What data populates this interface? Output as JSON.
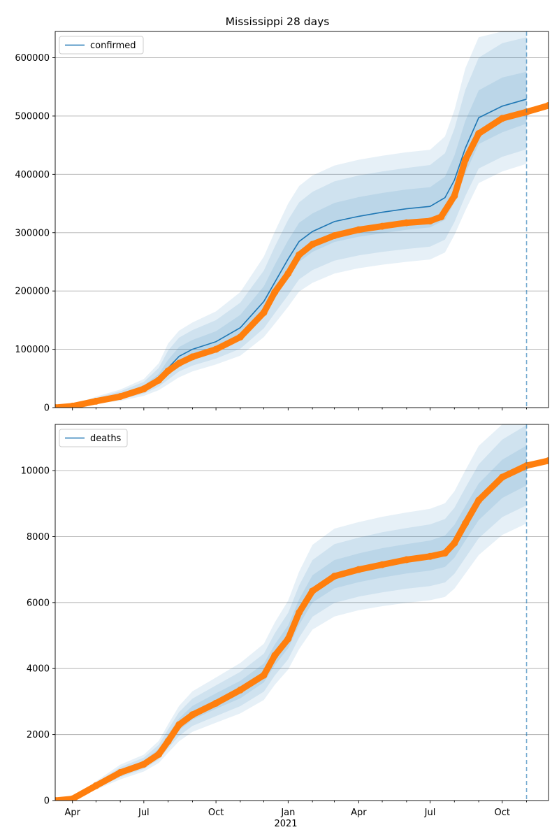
{
  "figure": {
    "title": "Mississippi 28 days",
    "year_label": "2021",
    "x_tick_labels": [
      "Apr",
      "Jul",
      "Oct",
      "Jan",
      "Apr",
      "Jul",
      "Oct"
    ]
  },
  "colors": {
    "band": "#1f77b4",
    "median": "#1f77b4",
    "observed": "#ff7f0e",
    "grid": "#b0b0b0"
  },
  "chart_data": [
    {
      "type": "line",
      "title": "Mississippi 28 days",
      "legend": [
        "confirmed"
      ],
      "legend_placement": "top-left",
      "grid": "horizontal",
      "x_range": [
        "2020-03-10",
        "2021-11-29"
      ],
      "ylim": [
        0,
        645000
      ],
      "y_ticks": [
        0,
        100000,
        200000,
        300000,
        400000,
        500000,
        600000
      ],
      "y_tick_labels": [
        "0",
        "100000",
        "200000",
        "300000",
        "400000",
        "500000",
        "600000"
      ],
      "forecast_date": "2021-11-01",
      "forecast": {
        "dates": [
          "2020-03-10",
          "2020-04-01",
          "2020-05-01",
          "2020-06-01",
          "2020-07-01",
          "2020-07-20",
          "2020-08-01",
          "2020-08-15",
          "2020-09-01",
          "2020-10-01",
          "2020-11-01",
          "2020-12-01",
          "2020-12-15",
          "2021-01-01",
          "2021-01-15",
          "2021-02-01",
          "2021-03-01",
          "2021-04-01",
          "2021-05-01",
          "2021-06-01",
          "2021-07-01",
          "2021-07-20",
          "2021-08-01",
          "2021-08-15",
          "2021-09-01",
          "2021-10-01",
          "2021-11-01"
        ],
        "median": [
          0,
          3000,
          12000,
          20000,
          33000,
          50000,
          68000,
          88000,
          100000,
          113000,
          137000,
          182000,
          215000,
          255000,
          285000,
          302000,
          319000,
          328000,
          335000,
          341000,
          345000,
          360000,
          390000,
          445000,
          497000,
          517000,
          529000
        ],
        "band_inner": {
          "lower": [
            0,
            2500,
            10000,
            17000,
            29000,
            44000,
            58000,
            75000,
            86000,
            97000,
            117000,
            157000,
            187000,
            222000,
            250000,
            267000,
            284000,
            293000,
            299000,
            305000,
            309000,
            322000,
            352000,
            402000,
            452000,
            472000,
            487000
          ],
          "upper": [
            0,
            3600,
            14000,
            24000,
            38000,
            58000,
            82000,
            104000,
            116000,
            131000,
            159000,
            208000,
            245000,
            287000,
            317000,
            333000,
            351000,
            361000,
            368000,
            374000,
            378000,
            396000,
            432000,
            492000,
            544000,
            566000,
            576000
          ]
        },
        "band_middle": {
          "lower": [
            0,
            2000,
            8500,
            14000,
            24000,
            36000,
            48000,
            62000,
            72000,
            84000,
            101000,
            136000,
            162000,
            193000,
            220000,
            236000,
            252000,
            261000,
            267000,
            272000,
            276000,
            288000,
            318000,
            363000,
            410000,
            430000,
            443000
          ],
          "upper": [
            0,
            4200,
            16500,
            28000,
            44000,
            68000,
            98000,
            120000,
            133000,
            150000,
            180000,
            235000,
            276000,
            322000,
            352000,
            370000,
            388000,
            398000,
            405000,
            411000,
            416000,
            436000,
            478000,
            545000,
            600000,
            625000,
            635000
          ]
        },
        "band_outer": {
          "lower": [
            0,
            1600,
            7000,
            11500,
            20000,
            30000,
            40000,
            52000,
            62000,
            74000,
            89000,
            121000,
            144000,
            173000,
            199000,
            214000,
            230000,
            239000,
            245000,
            250000,
            254000,
            266000,
            296000,
            338000,
            385000,
            405000,
            418000
          ],
          "upper": [
            0,
            4800,
            19000,
            31000,
            49000,
            76000,
            110000,
            132000,
            146000,
            165000,
            198000,
            259000,
            302000,
            350000,
            380000,
            398000,
            415000,
            425000,
            432000,
            438000,
            442000,
            465000,
            510000,
            582000,
            635000,
            645000,
            645000
          ]
        }
      },
      "observed": {
        "dates": [
          "2020-03-10",
          "2020-04-01",
          "2020-05-01",
          "2020-06-01",
          "2020-07-01",
          "2020-07-20",
          "2020-08-01",
          "2020-08-15",
          "2020-09-01",
          "2020-10-01",
          "2020-11-01",
          "2020-12-01",
          "2020-12-15",
          "2021-01-01",
          "2021-01-15",
          "2021-02-01",
          "2021-03-01",
          "2021-04-01",
          "2021-05-01",
          "2021-06-01",
          "2021-07-01",
          "2021-07-15",
          "2021-08-01",
          "2021-08-15",
          "2021-09-01",
          "2021-10-01",
          "2021-11-01",
          "2021-11-29"
        ],
        "values": [
          0,
          2500,
          11000,
          19000,
          32000,
          47000,
          63000,
          76000,
          87000,
          100000,
          121000,
          163000,
          198000,
          230000,
          262000,
          280000,
          295000,
          305000,
          311000,
          317000,
          320000,
          327000,
          363000,
          425000,
          470000,
          496000,
          507000,
          518000
        ]
      }
    },
    {
      "type": "line",
      "title": "",
      "legend": [
        "deaths"
      ],
      "legend_placement": "top-left",
      "grid": "horizontal",
      "x_range": [
        "2020-03-10",
        "2021-11-29"
      ],
      "ylim": [
        0,
        11400
      ],
      "y_ticks": [
        0,
        2000,
        4000,
        6000,
        8000,
        10000
      ],
      "y_tick_labels": [
        "0",
        "2000",
        "4000",
        "6000",
        "8000",
        "10000"
      ],
      "forecast_date": "2021-11-01",
      "forecast": {
        "dates": [
          "2020-03-10",
          "2020-04-01",
          "2020-05-01",
          "2020-06-01",
          "2020-07-01",
          "2020-07-20",
          "2020-08-01",
          "2020-08-15",
          "2020-09-01",
          "2020-10-01",
          "2020-11-01",
          "2020-12-01",
          "2020-12-15",
          "2021-01-01",
          "2021-01-15",
          "2021-02-01",
          "2021-03-01",
          "2021-04-01",
          "2021-05-01",
          "2021-06-01",
          "2021-07-01",
          "2021-07-20",
          "2021-08-01",
          "2021-08-15",
          "2021-09-01",
          "2021-10-01",
          "2021-11-01"
        ],
        "median": [
          0,
          60,
          450,
          850,
          1120,
          1450,
          1850,
          2300,
          2650,
          3000,
          3350,
          3850,
          4400,
          4950,
          5700,
          6400,
          6850,
          7050,
          7200,
          7320,
          7420,
          7550,
          7850,
          8400,
          9050,
          9750,
          10150
        ],
        "band_inner": {
          "lower": [
            0,
            50,
            410,
            780,
            1040,
            1340,
            1710,
            2130,
            2450,
            2780,
            3100,
            3580,
            4100,
            4620,
            5330,
            6000,
            6430,
            6620,
            6760,
            6880,
            6970,
            7080,
            7360,
            7880,
            8500,
            9170,
            9550
          ],
          "upper": [
            0,
            72,
            495,
            930,
            1210,
            1570,
            2010,
            2490,
            2870,
            3250,
            3630,
            4150,
            4730,
            5310,
            6100,
            6830,
            7290,
            7490,
            7650,
            7770,
            7880,
            8030,
            8350,
            8930,
            9610,
            10330,
            10760
          ]
        },
        "band_middle": {
          "lower": [
            0,
            42,
            370,
            710,
            960,
            1240,
            1580,
            1960,
            2260,
            2560,
            2860,
            3300,
            3790,
            4280,
            4940,
            5570,
            5990,
            6180,
            6310,
            6420,
            6500,
            6610,
            6870,
            7360,
            7950,
            8590,
            8950
          ],
          "upper": [
            0,
            82,
            540,
            1010,
            1300,
            1690,
            2160,
            2680,
            3090,
            3490,
            3900,
            4450,
            5070,
            5690,
            6520,
            7290,
            7770,
            7970,
            8130,
            8260,
            8370,
            8530,
            8870,
            9480,
            10190,
            10940,
            11380
          ]
        },
        "band_outer": {
          "lower": [
            0,
            35,
            330,
            640,
            880,
            1140,
            1450,
            1800,
            2080,
            2360,
            2640,
            3050,
            3510,
            3970,
            4590,
            5180,
            5580,
            5770,
            5890,
            5990,
            6070,
            6170,
            6420,
            6880,
            7440,
            8050,
            8400
          ],
          "upper": [
            0,
            92,
            585,
            1090,
            1390,
            1810,
            2310,
            2870,
            3310,
            3730,
            4170,
            4750,
            5400,
            6060,
            6940,
            7750,
            8240,
            8440,
            8600,
            8730,
            8840,
            9010,
            9370,
            10010,
            10750,
            11400,
            11400
          ]
        }
      },
      "observed": {
        "dates": [
          "2020-03-10",
          "2020-04-01",
          "2020-05-01",
          "2020-06-01",
          "2020-07-01",
          "2020-07-20",
          "2020-08-01",
          "2020-08-15",
          "2020-09-01",
          "2020-10-01",
          "2020-11-01",
          "2020-12-01",
          "2020-12-15",
          "2021-01-01",
          "2021-01-15",
          "2021-02-01",
          "2021-03-01",
          "2021-04-01",
          "2021-05-01",
          "2021-06-01",
          "2021-07-01",
          "2021-07-20",
          "2021-08-01",
          "2021-08-15",
          "2021-09-01",
          "2021-10-01",
          "2021-11-01",
          "2021-11-29"
        ],
        "values": [
          0,
          50,
          450,
          850,
          1100,
          1400,
          1800,
          2300,
          2600,
          2950,
          3350,
          3800,
          4400,
          4900,
          5700,
          6350,
          6800,
          7000,
          7150,
          7300,
          7400,
          7500,
          7800,
          8400,
          9100,
          9800,
          10150,
          10300
        ]
      }
    }
  ]
}
